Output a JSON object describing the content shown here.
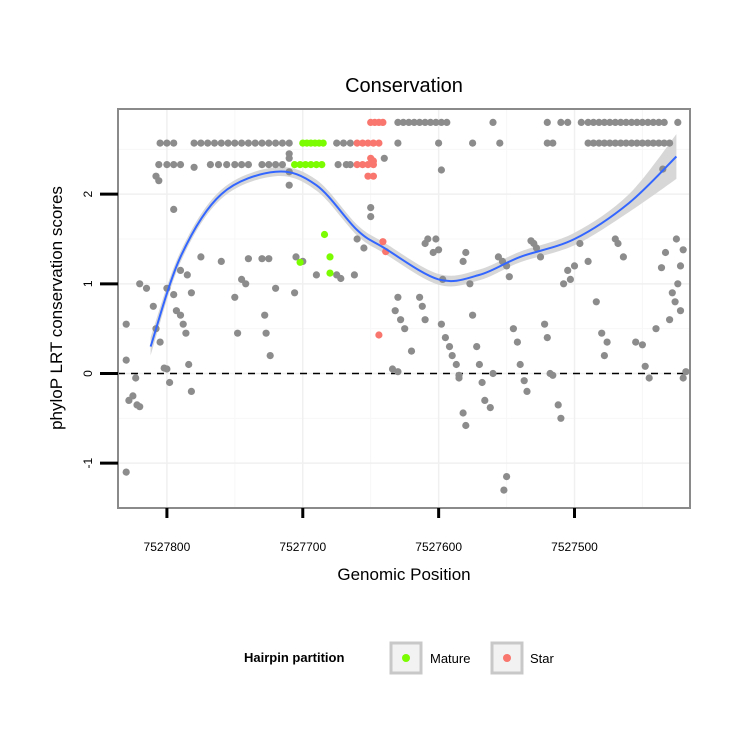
{
  "chart_data": {
    "type": "scatter",
    "title": "Conservation",
    "xlabel": "Genomic Position",
    "ylabel": "phyloP LRT conservation scores",
    "x_reversed": true,
    "xlim": [
      7527415,
      7527836
    ],
    "ylim": [
      -1.5,
      2.95
    ],
    "x_ticks": [
      7527800,
      7527700,
      7527600,
      7527500
    ],
    "x_tick_labels": [
      "7527800",
      "7527700",
      "7527600",
      "7527500"
    ],
    "y_ticks": [
      -1,
      0,
      1,
      2
    ],
    "y_tick_labels": [
      "-1",
      "0",
      "1",
      "2"
    ],
    "reference_line": {
      "y": 0,
      "style": "dashed"
    },
    "grid": true,
    "legend_placement": "bottom",
    "legend": {
      "title": "Hairpin partition",
      "entries": [
        {
          "label": "Mature",
          "color": "#7cfc00"
        },
        {
          "label": "Star",
          "color": "#f8766d"
        }
      ]
    },
    "colors": {
      "other": "#8c8c8c",
      "mature": "#7cfc00",
      "star": "#f8766d",
      "smooth_line": "#3366ff",
      "confidence_band": "#d3d3d3"
    },
    "smooth": {
      "x": [
        7527812,
        7527790,
        7527760,
        7527720,
        7527690,
        7527660,
        7527640,
        7527600,
        7527570,
        7527540,
        7527500,
        7527460,
        7527425
      ],
      "y": [
        0.3,
        1.3,
        2.0,
        2.25,
        2.1,
        1.6,
        1.4,
        1.05,
        1.1,
        1.3,
        1.5,
        1.9,
        2.42
      ],
      "band": [
        0.1,
        0.06,
        0.05,
        0.05,
        0.06,
        0.06,
        0.06,
        0.06,
        0.06,
        0.06,
        0.07,
        0.1,
        0.25
      ]
    },
    "series": [
      {
        "name": "Mature",
        "color": "#7cfc00",
        "points": [
          [
            7527700,
            2.57
          ],
          [
            7527697,
            2.57
          ],
          [
            7527694,
            2.57
          ],
          [
            7527691,
            2.57
          ],
          [
            7527688,
            2.57
          ],
          [
            7527685,
            2.57
          ],
          [
            7527706,
            2.33
          ],
          [
            7527702,
            2.33
          ],
          [
            7527698,
            2.33
          ],
          [
            7527694,
            2.33
          ],
          [
            7527690,
            2.33
          ],
          [
            7527686,
            2.33
          ],
          [
            7527684,
            1.55
          ],
          [
            7527680,
            1.3
          ],
          [
            7527680,
            1.12
          ],
          [
            7527702,
            1.24
          ]
        ]
      },
      {
        "name": "Star",
        "color": "#f8766d",
        "points": [
          [
            7527650,
            2.8
          ],
          [
            7527647,
            2.8
          ],
          [
            7527644,
            2.8
          ],
          [
            7527641,
            2.8
          ],
          [
            7527660,
            2.57
          ],
          [
            7527656,
            2.57
          ],
          [
            7527652,
            2.57
          ],
          [
            7527648,
            2.57
          ],
          [
            7527644,
            2.57
          ],
          [
            7527650,
            2.4
          ],
          [
            7527648,
            2.37
          ],
          [
            7527660,
            2.33
          ],
          [
            7527656,
            2.33
          ],
          [
            7527652,
            2.33
          ],
          [
            7527648,
            2.33
          ],
          [
            7527652,
            2.2
          ],
          [
            7527648,
            2.2
          ],
          [
            7527641,
            1.47
          ],
          [
            7527639,
            1.36
          ],
          [
            7527644,
            0.43
          ]
        ]
      },
      {
        "color": "#8c8c8c",
        "points": [
          [
            7527805,
            2.57
          ],
          [
            7527800,
            2.57
          ],
          [
            7527795,
            2.57
          ],
          [
            7527780,
            2.57
          ],
          [
            7527775,
            2.57
          ],
          [
            7527770,
            2.57
          ],
          [
            7527765,
            2.57
          ],
          [
            7527760,
            2.57
          ],
          [
            7527755,
            2.57
          ],
          [
            7527750,
            2.57
          ],
          [
            7527745,
            2.57
          ],
          [
            7527740,
            2.57
          ],
          [
            7527735,
            2.57
          ],
          [
            7527730,
            2.57
          ],
          [
            7527725,
            2.57
          ],
          [
            7527720,
            2.57
          ],
          [
            7527715,
            2.57
          ],
          [
            7527710,
            2.57
          ],
          [
            7527675,
            2.57
          ],
          [
            7527670,
            2.57
          ],
          [
            7527665,
            2.57
          ],
          [
            7527630,
            2.8
          ],
          [
            7527626,
            2.8
          ],
          [
            7527622,
            2.8
          ],
          [
            7527618,
            2.8
          ],
          [
            7527614,
            2.8
          ],
          [
            7527610,
            2.8
          ],
          [
            7527606,
            2.8
          ],
          [
            7527602,
            2.8
          ],
          [
            7527598,
            2.8
          ],
          [
            7527594,
            2.8
          ],
          [
            7527560,
            2.8
          ],
          [
            7527520,
            2.8
          ],
          [
            7527510,
            2.8
          ],
          [
            7527505,
            2.8
          ],
          [
            7527495,
            2.8
          ],
          [
            7527490,
            2.8
          ],
          [
            7527486,
            2.8
          ],
          [
            7527482,
            2.8
          ],
          [
            7527478,
            2.8
          ],
          [
            7527474,
            2.8
          ],
          [
            7527470,
            2.8
          ],
          [
            7527466,
            2.8
          ],
          [
            7527462,
            2.8
          ],
          [
            7527458,
            2.8
          ],
          [
            7527454,
            2.8
          ],
          [
            7527450,
            2.8
          ],
          [
            7527446,
            2.8
          ],
          [
            7527442,
            2.8
          ],
          [
            7527438,
            2.8
          ],
          [
            7527434,
            2.8
          ],
          [
            7527424,
            2.8
          ],
          [
            7527490,
            2.57
          ],
          [
            7527486,
            2.57
          ],
          [
            7527482,
            2.57
          ],
          [
            7527478,
            2.57
          ],
          [
            7527474,
            2.57
          ],
          [
            7527470,
            2.57
          ],
          [
            7527466,
            2.57
          ],
          [
            7527462,
            2.57
          ],
          [
            7527458,
            2.57
          ],
          [
            7527454,
            2.57
          ],
          [
            7527450,
            2.57
          ],
          [
            7527446,
            2.57
          ],
          [
            7527442,
            2.57
          ],
          [
            7527438,
            2.57
          ],
          [
            7527434,
            2.57
          ],
          [
            7527430,
            2.57
          ],
          [
            7527520,
            2.57
          ],
          [
            7527516,
            2.57
          ],
          [
            7527600,
            2.57
          ],
          [
            7527575,
            2.57
          ],
          [
            7527555,
            2.57
          ],
          [
            7527630,
            2.57
          ],
          [
            7527806,
            2.33
          ],
          [
            7527800,
            2.33
          ],
          [
            7527795,
            2.33
          ],
          [
            7527790,
            2.33
          ],
          [
            7527768,
            2.33
          ],
          [
            7527762,
            2.33
          ],
          [
            7527756,
            2.33
          ],
          [
            7527750,
            2.33
          ],
          [
            7527745,
            2.33
          ],
          [
            7527740,
            2.33
          ],
          [
            7527730,
            2.33
          ],
          [
            7527725,
            2.33
          ],
          [
            7527720,
            2.33
          ],
          [
            7527715,
            2.33
          ],
          [
            7527674,
            2.33
          ],
          [
            7527668,
            2.33
          ],
          [
            7527665,
            2.33
          ],
          [
            7527710,
            2.45
          ],
          [
            7527710,
            2.4
          ],
          [
            7527640,
            2.4
          ],
          [
            7527598,
            2.27
          ],
          [
            7527435,
            2.28
          ],
          [
            7527808,
            2.2
          ],
          [
            7527806,
            2.15
          ],
          [
            7527710,
            2.1
          ],
          [
            7527710,
            2.25
          ],
          [
            7527780,
            2.3
          ],
          [
            7527650,
            1.85
          ],
          [
            7527795,
            1.83
          ],
          [
            7527820,
            1.0
          ],
          [
            7527815,
            0.95
          ],
          [
            7527800,
            0.95
          ],
          [
            7527830,
            0.55
          ],
          [
            7527830,
            0.15
          ],
          [
            7527828,
            -0.3
          ],
          [
            7527825,
            -0.25
          ],
          [
            7527822,
            -0.35
          ],
          [
            7527820,
            -0.37
          ],
          [
            7527823,
            -0.05
          ],
          [
            7527830,
            -1.1
          ],
          [
            7527810,
            0.75
          ],
          [
            7527808,
            0.5
          ],
          [
            7527805,
            0.35
          ],
          [
            7527802,
            0.06
          ],
          [
            7527800,
            0.05
          ],
          [
            7527798,
            -0.1
          ],
          [
            7527795,
            0.88
          ],
          [
            7527793,
            0.7
          ],
          [
            7527790,
            0.65
          ],
          [
            7527788,
            0.55
          ],
          [
            7527786,
            0.45
          ],
          [
            7527784,
            0.1
          ],
          [
            7527782,
            -0.2
          ],
          [
            7527790,
            1.15
          ],
          [
            7527785,
            1.1
          ],
          [
            7527782,
            0.9
          ],
          [
            7527775,
            1.3
          ],
          [
            7527760,
            1.25
          ],
          [
            7527745,
            1.05
          ],
          [
            7527742,
            1.0
          ],
          [
            7527750,
            0.85
          ],
          [
            7527748,
            0.45
          ],
          [
            7527740,
            1.28
          ],
          [
            7527730,
            1.28
          ],
          [
            7527725,
            1.28
          ],
          [
            7527728,
            0.65
          ],
          [
            7527727,
            0.45
          ],
          [
            7527724,
            0.2
          ],
          [
            7527706,
            0.9
          ],
          [
            7527720,
            0.95
          ],
          [
            7527705,
            1.3
          ],
          [
            7527700,
            1.25
          ],
          [
            7527690,
            1.1
          ],
          [
            7527675,
            1.1
          ],
          [
            7527672,
            1.06
          ],
          [
            7527662,
            1.1
          ],
          [
            7527660,
            1.5
          ],
          [
            7527655,
            1.4
          ],
          [
            7527650,
            1.75
          ],
          [
            7527630,
            0.85
          ],
          [
            7527632,
            0.7
          ],
          [
            7527628,
            0.6
          ],
          [
            7527625,
            0.5
          ],
          [
            7527620,
            0.25
          ],
          [
            7527634,
            0.05
          ],
          [
            7527630,
            0.02
          ],
          [
            7527614,
            0.85
          ],
          [
            7527612,
            0.75
          ],
          [
            7527610,
            0.6
          ],
          [
            7527608,
            1.5
          ],
          [
            7527604,
            1.35
          ],
          [
            7527610,
            1.45
          ],
          [
            7527602,
            1.5
          ],
          [
            7527600,
            1.38
          ],
          [
            7527597,
            1.05
          ],
          [
            7527598,
            0.55
          ],
          [
            7527595,
            0.4
          ],
          [
            7527592,
            0.3
          ],
          [
            7527590,
            0.2
          ],
          [
            7527587,
            0.1
          ],
          [
            7527585,
            -0.02
          ],
          [
            7527582,
            1.25
          ],
          [
            7527580,
            1.35
          ],
          [
            7527577,
            1.0
          ],
          [
            7527575,
            0.65
          ],
          [
            7527572,
            0.3
          ],
          [
            7527570,
            0.1
          ],
          [
            7527568,
            -0.1
          ],
          [
            7527566,
            -0.3
          ],
          [
            7527562,
            -0.38
          ],
          [
            7527560,
            0.0
          ],
          [
            7527556,
            1.3
          ],
          [
            7527553,
            1.25
          ],
          [
            7527550,
            1.2
          ],
          [
            7527548,
            1.08
          ],
          [
            7527545,
            0.5
          ],
          [
            7527542,
            0.35
          ],
          [
            7527540,
            0.1
          ],
          [
            7527537,
            -0.08
          ],
          [
            7527535,
            -0.2
          ],
          [
            7527532,
            1.48
          ],
          [
            7527530,
            1.45
          ],
          [
            7527528,
            1.4
          ],
          [
            7527525,
            1.3
          ],
          [
            7527522,
            0.55
          ],
          [
            7527520,
            0.4
          ],
          [
            7527518,
            0.0
          ],
          [
            7527516,
            -0.02
          ],
          [
            7527512,
            -0.35
          ],
          [
            7527510,
            -0.5
          ],
          [
            7527508,
            1.0
          ],
          [
            7527505,
            1.15
          ],
          [
            7527503,
            1.05
          ],
          [
            7527500,
            1.2
          ],
          [
            7527496,
            1.45
          ],
          [
            7527490,
            1.25
          ],
          [
            7527484,
            0.8
          ],
          [
            7527480,
            0.45
          ],
          [
            7527478,
            0.2
          ],
          [
            7527476,
            0.35
          ],
          [
            7527470,
            1.5
          ],
          [
            7527468,
            1.45
          ],
          [
            7527464,
            1.3
          ],
          [
            7527455,
            0.35
          ],
          [
            7527450,
            0.32
          ],
          [
            7527448,
            0.08
          ],
          [
            7527445,
            -0.05
          ],
          [
            7527440,
            0.5
          ],
          [
            7527436,
            1.18
          ],
          [
            7527433,
            1.35
          ],
          [
            7527430,
            0.6
          ],
          [
            7527428,
            0.9
          ],
          [
            7527426,
            0.8
          ],
          [
            7527424,
            1.0
          ],
          [
            7527422,
            1.2
          ],
          [
            7527420,
            1.38
          ],
          [
            7527418,
            0.02
          ],
          [
            7527420,
            -0.05
          ],
          [
            7527425,
            1.5
          ],
          [
            7527422,
            0.7
          ],
          [
            7527550,
            -1.15
          ],
          [
            7527552,
            -1.3
          ],
          [
            7527580,
            -0.58
          ],
          [
            7527582,
            -0.44
          ],
          [
            7527585,
            -0.05
          ]
        ]
      }
    ]
  }
}
